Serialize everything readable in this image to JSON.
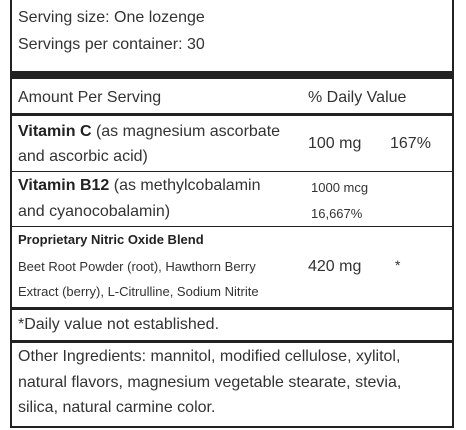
{
  "serving": {
    "size": "Serving size: One lozenge",
    "per_container": "Servings per container: 30"
  },
  "header": {
    "amount": "Amount Per Serving",
    "daily_value": "% Daily Value"
  },
  "vitamin_c": {
    "name": "Vitamin C",
    "desc_line1": "(as magnesium ascorbate",
    "desc_line2": "and ascorbic acid)",
    "amount": "100 mg",
    "dv": "167%"
  },
  "vitamin_b12": {
    "name": "Vitamin B12",
    "desc_line1": "(as methylcobalamin",
    "desc_line2": "and cyanocobalamin)",
    "amount": "1000 mcg",
    "dv": "16,667%"
  },
  "blend": {
    "title": "Proprietary Nitric Oxide Blend",
    "line1": "Beet Root Powder (root), Hawthorn Berry",
    "line2": "Extract (berry), L-Citrulline, Sodium Nitrite",
    "amount": "420 mg",
    "dv": "*"
  },
  "footnote": "*Daily value not established.",
  "other_ingredients": {
    "line1": "Other Ingredients: mannitol, modified cellulose, xylitol,",
    "line2": "natural flavors, magnesium vegetable stearate, stevia,",
    "line3": "silica, natural carmine color."
  }
}
